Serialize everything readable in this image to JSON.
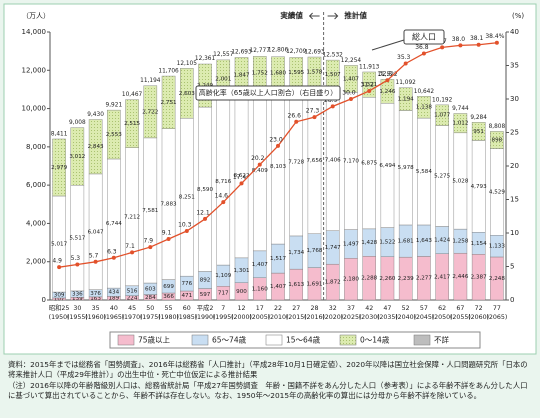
{
  "chart_data": {
    "type": "stacked-bar-line",
    "unit_left": "（万人）",
    "unit_right": "(%)",
    "label_actual": "実績値",
    "label_projected": "推計値",
    "annotation_total": "総人口",
    "annotation_rate": "高齢化率（65歳以上人口割合）（右目盛り）",
    "categories": [
      "昭和25",
      "30",
      "35",
      "40",
      "45",
      "50",
      "55",
      "60",
      "平成2",
      "7",
      "12",
      "17",
      "22",
      "27",
      "28",
      "32",
      "37",
      "42",
      "47",
      "52",
      "57",
      "62",
      "67",
      "72",
      "77"
    ],
    "category_years": [
      "(1950)",
      "(1955)",
      "(1960)",
      "(1965)",
      "(1970)",
      "(1975)",
      "(1980)",
      "(1985)",
      "(1990)",
      "(1995)",
      "(2000)",
      "(2005)",
      "(2010)",
      "(2015)",
      "(2016)",
      "(2020)",
      "(2025)",
      "(2030)",
      "(2035)",
      "(2040)",
      "(2045)",
      "(2050)",
      "(2055)",
      "(2060)",
      "(2065)"
    ],
    "projection_start_index": 15,
    "totals": [
      8411,
      9008,
      9430,
      9921,
      10467,
      11194,
      11706,
      12105,
      12361,
      12557,
      12693,
      12777,
      12806,
      12709,
      12693,
      12532,
      12254,
      11913,
      11522,
      11092,
      10642,
      10192,
      9744,
      9284,
      8808
    ],
    "total_labels": [
      "8,411",
      "9,008",
      "9,430",
      "9,921",
      "10,467",
      "11,194",
      "11,706",
      "12,105",
      "12,361",
      "12,557",
      "12,693",
      "12,777",
      "12,806",
      "12,709",
      "12,693",
      "12,532",
      "12,254",
      "11,913",
      "11,522",
      "11,092",
      "10,642",
      "10,192",
      "9,744",
      "9,284",
      "8,808"
    ],
    "series": [
      {
        "name": "75歳以上",
        "color": "#f5bccd",
        "values": [
          107,
          139,
          163,
          189,
          224,
          284,
          366,
          471,
          597,
          717,
          900,
          1160,
          1407,
          1613,
          1691,
          1872,
          2180,
          2288,
          2260,
          2239,
          2277,
          2417,
          2446,
          2387,
          2248
        ],
        "value_labels": [
          "107",
          "139",
          "163",
          "189",
          "224",
          "284",
          "366",
          "471",
          "597",
          "717",
          "900",
          "1,160",
          "1,407",
          "1,613",
          "1,691",
          "1,872",
          "2,180",
          "2,288",
          "2,260",
          "2,239",
          "2,277",
          "2,417",
          "2,446",
          "2,387",
          "2,248"
        ]
      },
      {
        "name": "65～74歳",
        "color": "#c9def2",
        "values": [
          309,
          336,
          376,
          434,
          516,
          603,
          699,
          776,
          892,
          1109,
          1301,
          1407,
          1517,
          1734,
          1768,
          1747,
          1497,
          1428,
          1522,
          1681,
          1643,
          1424,
          1258,
          1154,
          1133
        ],
        "value_labels": [
          "309",
          "336",
          "376",
          "434",
          "516",
          "603",
          "699",
          "776",
          "892",
          "1,109",
          "1,301",
          "1,407",
          "1,517",
          "1,734",
          "1,768",
          "1,747",
          "1,497",
          "1,428",
          "1,522",
          "1,681",
          "1,643",
          "1,424",
          "1,258",
          "1,154",
          "1,133"
        ]
      },
      {
        "name": "15～64歳",
        "color": "#ffffff",
        "values": [
          5017,
          5517,
          6047,
          6744,
          7212,
          7581,
          7883,
          8251,
          8590,
          8716,
          8622,
          8409,
          8103,
          7728,
          7656,
          7406,
          7170,
          6875,
          6494,
          5978,
          5584,
          5275,
          5028,
          4793,
          4529
        ],
        "value_labels": [
          "5,017",
          "5,517",
          "6,047",
          "6,744",
          "7,212",
          "7,581",
          "7,883",
          "8,251",
          "8,590",
          "8,716",
          "8,622",
          "8,409",
          "8,103",
          "7,728",
          "7,656",
          "7,406",
          "7,170",
          "6,875",
          "6,494",
          "5,978",
          "5,584",
          "5,275",
          "5,028",
          "4,793",
          "4,529"
        ]
      },
      {
        "name": "0～14歳",
        "color": "#dcebb0",
        "values": [
          2979,
          3012,
          2843,
          2553,
          2515,
          2722,
          2751,
          2603,
          2249,
          2001,
          1847,
          1752,
          1680,
          1595,
          1578,
          1507,
          1407,
          1321,
          1246,
          1194,
          1138,
          1077,
          1012,
          951,
          898
        ],
        "value_labels": [
          "2,979",
          "3,012",
          "2,843",
          "2,553",
          "2,515",
          "2,722",
          "2,751",
          "2,603",
          "2,249",
          "2,001",
          "1,847",
          "1,752",
          "1,680",
          "1,595",
          "1,578",
          "1,507",
          "1,407",
          "1,321",
          "1,246",
          "1,194",
          "1,138",
          "1,077",
          "1,012",
          "951",
          "898"
        ]
      },
      {
        "name": "不詳",
        "color": "#bdbdbd",
        "values": [
          null,
          null,
          null,
          null,
          null,
          null,
          null,
          null,
          null,
          null,
          null,
          null,
          null,
          null,
          null,
          null,
          null,
          null,
          null,
          null,
          null,
          null,
          null,
          null,
          null
        ]
      },
      {
        "name": "高齢化率",
        "type": "line",
        "axis": "y2",
        "color": "#e2512b",
        "values": [
          4.9,
          5.3,
          5.7,
          6.3,
          7.1,
          7.9,
          9.1,
          10.3,
          12.1,
          14.6,
          17.4,
          20.2,
          23.0,
          26.6,
          27.3,
          28.9,
          30.0,
          31.2,
          32.8,
          35.3,
          36.8,
          37.7,
          38.0,
          38.1,
          38.4
        ],
        "value_labels": [
          "4.9",
          "5.3",
          "5.7",
          "6.3",
          "7.1",
          "7.9",
          "9.1",
          "10.3",
          "12.1",
          "14.6",
          "17.4",
          "20.2",
          "23.0",
          "26.6",
          "27.3",
          "28.9",
          "30.0",
          "31.2",
          "32.8",
          "35.3",
          "36.8",
          "37.7",
          "38.0",
          "38.1",
          "38.4%"
        ]
      }
    ],
    "ylim": [
      0,
      14000
    ],
    "yticks": [
      0,
      {
        "value": 2000,
        "label": "2,000"
      },
      {
        "value": 4000,
        "label": "4,000"
      },
      {
        "value": 6000,
        "label": "6,000"
      },
      {
        "value": 8000,
        "label": "8,000"
      },
      {
        "value": 10000,
        "label": "10,000"
      },
      {
        "value": 12000,
        "label": "12,000"
      },
      {
        "value": 14000,
        "label": "14,000"
      }
    ],
    "y2lim": [
      0,
      40
    ],
    "y2ticks": [
      0,
      5,
      10,
      15,
      20,
      25,
      30,
      35,
      40
    ],
    "grid": false,
    "legend": "bottom"
  },
  "notes": [
    "資料：2015年までは総務省「国勢調査」、2016年は総務省「人口推計」（平成28年10月1日確定値）、2020年以降は国立社会保障・人口問題研究所「日本の将来推計人口（平成29年推計）」の出生中位・死亡中位仮定による推計結果",
    "（注）2016年以降の年齢階級別人口は、総務省統計局「平成27年国勢調査　年齢・国籍不詳をあん分した人口（参考表）」による年齢不詳をあん分した人口に基づいて算出されていることから、年齢不詳は存在しない。なお、1950年～2015年の高齢化率の算出には分母から年齢不詳を除いている。"
  ]
}
